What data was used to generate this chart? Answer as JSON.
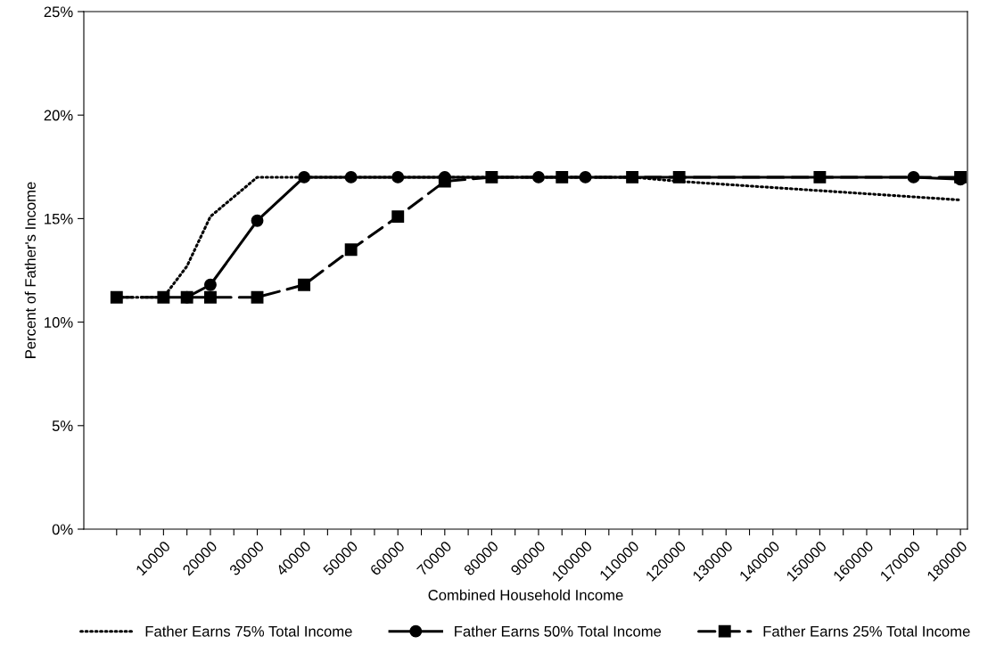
{
  "chart_data": {
    "type": "line",
    "xlabel": "Combined Household Income",
    "ylabel": "Percent of Father's Income",
    "xlim": [
      -7000,
      181500
    ],
    "xticks": [
      {
        "value": 0,
        "label": null
      },
      {
        "value": 5000,
        "label": null
      },
      10000,
      {
        "value": 15000,
        "label": null
      },
      20000,
      {
        "value": 25000,
        "label": null
      },
      30000,
      {
        "value": 35000,
        "label": null
      },
      40000,
      {
        "value": 45000,
        "label": null
      },
      50000,
      {
        "value": 55000,
        "label": null
      },
      60000,
      {
        "value": 65000,
        "label": null
      },
      70000,
      {
        "value": 75000,
        "label": null
      },
      80000,
      {
        "value": 85000,
        "label": null
      },
      90000,
      {
        "value": 95000,
        "label": null
      },
      100000,
      {
        "value": 105000,
        "label": null
      },
      110000,
      {
        "value": 115000,
        "label": null
      },
      120000,
      {
        "value": 125000,
        "label": null
      },
      130000,
      {
        "value": 135000,
        "label": null
      },
      140000,
      {
        "value": 145000,
        "label": null
      },
      150000,
      {
        "value": 155000,
        "label": null
      },
      160000,
      {
        "value": 165000,
        "label": null
      },
      170000,
      {
        "value": 175000,
        "label": null
      },
      180000
    ],
    "ylim": [
      0,
      25
    ],
    "yticks": [
      {
        "value": 0,
        "label": "0%"
      },
      {
        "value": 5,
        "label": "5%"
      },
      {
        "value": 10,
        "label": "10%"
      },
      {
        "value": 15,
        "label": "15%"
      },
      {
        "value": 20,
        "label": "20%"
      },
      {
        "value": 25,
        "label": "25%"
      }
    ],
    "grid": false,
    "legend": "bottom",
    "series": [
      {
        "name": "Father Earns 75% Total Income",
        "color": "#000000",
        "marker": "none",
        "line_style": "dotted",
        "x": [
          0,
          10000,
          15000,
          20000,
          30000,
          40000,
          110000,
          120000,
          180000
        ],
        "values": [
          11.2,
          11.2,
          12.7,
          15.1,
          17.0,
          17.0,
          17.0,
          16.8,
          15.9
        ]
      },
      {
        "name": "Father Earns 50% Total Income",
        "color": "#000000",
        "marker": "circle",
        "line_style": "solid",
        "x": [
          15000,
          20000,
          30000,
          40000,
          50000,
          60000,
          70000,
          90000,
          100000,
          170000,
          180000
        ],
        "values": [
          11.2,
          11.8,
          14.9,
          17.0,
          17.0,
          17.0,
          17.0,
          17.0,
          17.0,
          17.0,
          16.9
        ]
      },
      {
        "name": "Father Earns 25% Total Income",
        "color": "#000000",
        "marker": "square",
        "line_style": "dashed",
        "x": [
          0,
          10000,
          15000,
          20000,
          30000,
          40000,
          50000,
          60000,
          70000,
          80000,
          95000,
          110000,
          120000,
          150000,
          180000
        ],
        "values": [
          11.2,
          11.2,
          11.2,
          11.2,
          11.2,
          11.8,
          13.5,
          15.1,
          16.8,
          17.0,
          17.0,
          17.0,
          17.0,
          17.0,
          17.0
        ]
      }
    ]
  }
}
